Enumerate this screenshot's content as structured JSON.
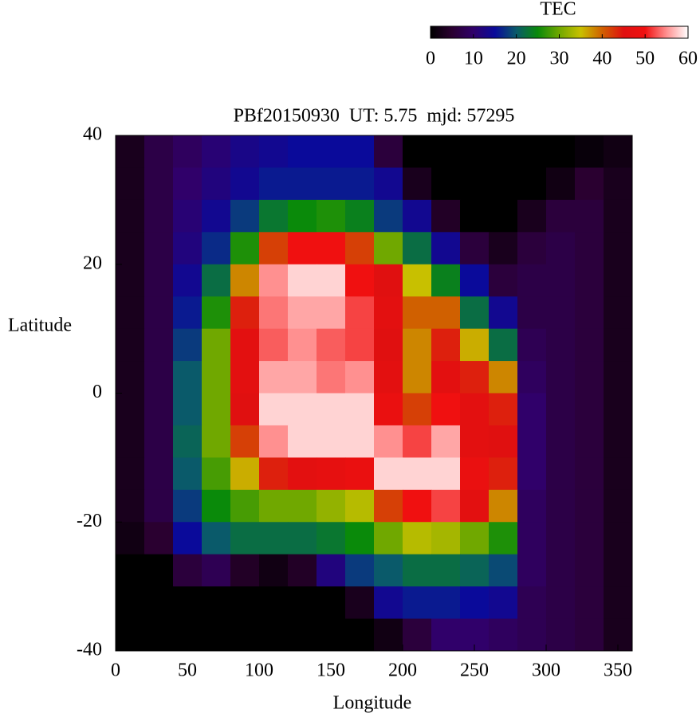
{
  "chart_data": {
    "type": "heatmap",
    "title": "PBf20150930  UT: 5.75  mjd: 57295",
    "x_label": "Longitude",
    "y_label": "Latitude",
    "colorbar_label": "TEC",
    "xlim": [
      0,
      360
    ],
    "xticks": [
      0,
      50,
      100,
      150,
      200,
      250,
      300,
      350
    ],
    "ylim": [
      -40,
      40
    ],
    "yticks": [
      -40,
      -20,
      0,
      20,
      40
    ],
    "clim": [
      0,
      60
    ],
    "cticks": [
      0,
      10,
      20,
      30,
      40,
      50,
      60
    ],
    "colormap": [
      "#000000",
      "#2a0030",
      "#30006a",
      "#0a0a9a",
      "#0a5a6a",
      "#0a8a0a",
      "#70a800",
      "#c8c000",
      "#d06000",
      "#e01010",
      "#f01010",
      "#ff9090",
      "#ffffff"
    ],
    "xbins": [
      0,
      20,
      40,
      60,
      80,
      100,
      120,
      140,
      160,
      180,
      200,
      220,
      240,
      260,
      280,
      300,
      320,
      340,
      360
    ],
    "ybins": [
      40,
      35,
      30,
      25,
      20,
      15,
      10,
      5,
      0,
      -5,
      -10,
      -15,
      -20,
      -25,
      -30,
      -35,
      -40
    ],
    "z": [
      [
        3,
        7,
        9,
        11,
        13,
        14,
        15,
        15,
        15,
        6,
        0,
        0,
        0,
        0,
        0,
        0,
        1,
        2
      ],
      [
        3,
        7,
        10,
        12,
        14,
        16,
        16,
        16,
        16,
        14,
        3,
        0,
        0,
        0,
        0,
        2,
        5,
        3
      ],
      [
        3,
        7,
        11,
        14,
        18,
        23,
        25,
        26,
        24,
        18,
        14,
        4,
        0,
        0,
        3,
        6,
        6,
        3
      ],
      [
        3,
        7,
        12,
        17,
        26,
        42,
        50,
        50,
        42,
        30,
        22,
        14,
        6,
        3,
        6,
        7,
        6,
        3
      ],
      [
        3,
        7,
        14,
        22,
        38,
        55,
        58,
        58,
        50,
        45,
        35,
        24,
        15,
        6,
        7,
        7,
        6,
        3
      ],
      [
        3,
        7,
        16,
        26,
        44,
        54,
        56,
        56,
        52,
        46,
        40,
        40,
        22,
        14,
        7,
        7,
        6,
        3
      ],
      [
        3,
        7,
        18,
        30,
        46,
        53,
        55,
        53,
        52,
        45,
        38,
        44,
        36,
        22,
        8,
        7,
        6,
        3
      ],
      [
        3,
        7,
        20,
        30,
        46,
        56,
        56,
        54,
        55,
        46,
        38,
        46,
        44,
        38,
        9,
        7,
        6,
        3
      ],
      [
        3,
        7,
        20,
        30,
        45,
        58,
        58,
        58,
        58,
        48,
        42,
        50,
        46,
        44,
        10,
        7,
        6,
        3
      ],
      [
        3,
        7,
        21,
        30,
        42,
        55,
        58,
        58,
        58,
        55,
        52,
        56,
        46,
        45,
        10,
        7,
        6,
        3
      ],
      [
        3,
        7,
        20,
        28,
        36,
        44,
        46,
        47,
        48,
        58,
        58,
        58,
        48,
        44,
        10,
        7,
        6,
        3
      ],
      [
        3,
        7,
        18,
        25,
        28,
        30,
        30,
        32,
        34,
        42,
        50,
        52,
        46,
        38,
        9,
        7,
        6,
        3
      ],
      [
        2,
        5,
        15,
        20,
        22,
        22,
        22,
        23,
        25,
        30,
        34,
        33,
        30,
        26,
        9,
        7,
        6,
        3
      ],
      [
        0,
        0,
        6,
        8,
        4,
        2,
        4,
        12,
        18,
        20,
        22,
        22,
        21,
        19,
        9,
        7,
        6,
        3
      ],
      [
        0,
        0,
        0,
        0,
        0,
        0,
        0,
        0,
        3,
        14,
        16,
        16,
        15,
        14,
        8,
        7,
        6,
        3
      ],
      [
        0,
        0,
        0,
        0,
        0,
        0,
        0,
        0,
        0,
        2,
        6,
        10,
        10,
        9,
        8,
        7,
        6,
        3
      ]
    ]
  }
}
